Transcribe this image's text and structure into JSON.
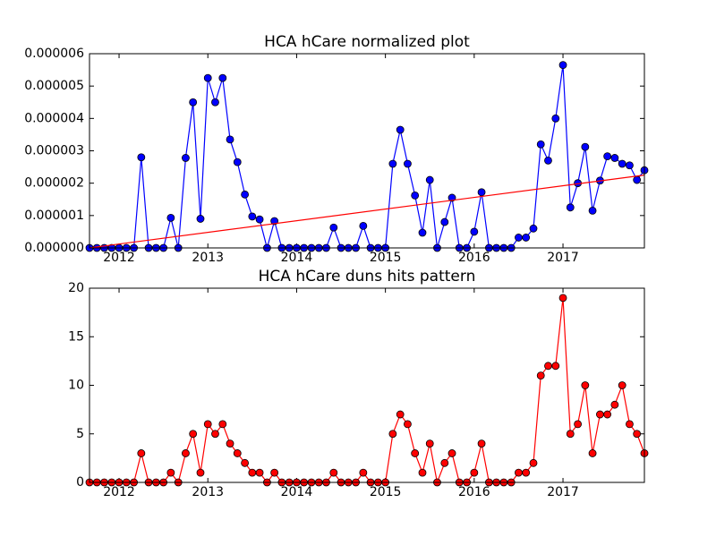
{
  "chart_data": [
    {
      "type": "line",
      "title": "HCA hCare normalized plot",
      "x": [
        2011.667,
        2011.75,
        2011.833,
        2011.917,
        2012,
        2012.083,
        2012.167,
        2012.25,
        2012.333,
        2012.417,
        2012.5,
        2012.583,
        2012.667,
        2012.75,
        2012.833,
        2012.917,
        2013,
        2013.083,
        2013.167,
        2013.25,
        2013.333,
        2013.417,
        2013.5,
        2013.583,
        2013.667,
        2013.75,
        2013.833,
        2013.917,
        2014,
        2014.083,
        2014.167,
        2014.25,
        2014.333,
        2014.417,
        2014.5,
        2014.583,
        2014.667,
        2014.75,
        2014.833,
        2014.917,
        2015,
        2015.083,
        2015.167,
        2015.25,
        2015.333,
        2015.417,
        2015.5,
        2015.583,
        2015.667,
        2015.75,
        2015.833,
        2015.917,
        2016,
        2016.083,
        2016.167,
        2016.25,
        2016.333,
        2016.417,
        2016.5,
        2016.583,
        2016.667,
        2016.75,
        2016.833,
        2016.917,
        2017,
        2017.083,
        2017.167,
        2017.25,
        2017.333,
        2017.417,
        2017.5,
        2017.583,
        2017.667,
        2017.75,
        2017.833,
        2017.917
      ],
      "series": [
        {
          "color": "#0000ff",
          "values": [
            0,
            0,
            0,
            0,
            0,
            0,
            0,
            2.8e-06,
            0,
            0,
            0,
            9.3e-07,
            0,
            2.78e-06,
            4.5e-06,
            9e-07,
            5.25e-06,
            4.5e-06,
            5.25e-06,
            3.35e-06,
            2.65e-06,
            1.65e-06,
            9.7e-07,
            8.8e-07,
            0,
            8.3e-07,
            0,
            0,
            0,
            0,
            0,
            0,
            0,
            6.3e-07,
            0,
            0,
            0,
            6.8e-07,
            0,
            0,
            0,
            2.6e-06,
            3.65e-06,
            2.6e-06,
            1.62e-06,
            4.7e-07,
            2.1e-06,
            0,
            8e-07,
            1.55e-06,
            0,
            0,
            5e-07,
            1.72e-06,
            0,
            0,
            0,
            0,
            3.2e-07,
            3.2e-07,
            6e-07,
            3.2e-06,
            2.7e-06,
            4e-06,
            5.65e-06,
            1.25e-06,
            2e-06,
            3.12e-06,
            1.15e-06,
            2.08e-06,
            2.83e-06,
            2.78e-06,
            2.6e-06,
            2.55e-06,
            2.1e-06,
            2.4e-06
          ]
        }
      ],
      "trend_line": {
        "color": "#ff0000",
        "x": [
          2011.667,
          2017.917
        ],
        "values": [
          0,
          2.25e-06
        ]
      },
      "xlim": [
        2011.667,
        2017.917
      ],
      "xticks": [
        2012,
        2013,
        2014,
        2015,
        2016,
        2017
      ],
      "ylim": [
        0,
        6e-06
      ],
      "yticks": [
        {
          "value": 0,
          "label": "0.000000"
        },
        {
          "value": 1e-06,
          "label": "0.000001"
        },
        {
          "value": 2e-06,
          "label": "0.000002"
        },
        {
          "value": 3e-06,
          "label": "0.000003"
        },
        {
          "value": 4e-06,
          "label": "0.000004"
        },
        {
          "value": 5e-06,
          "label": "0.000005"
        },
        {
          "value": 6e-06,
          "label": "0.000006"
        }
      ]
    },
    {
      "type": "line",
      "title": "HCA hCare duns hits pattern",
      "x": [
        2011.667,
        2011.75,
        2011.833,
        2011.917,
        2012,
        2012.083,
        2012.167,
        2012.25,
        2012.333,
        2012.417,
        2012.5,
        2012.583,
        2012.667,
        2012.75,
        2012.833,
        2012.917,
        2013,
        2013.083,
        2013.167,
        2013.25,
        2013.333,
        2013.417,
        2013.5,
        2013.583,
        2013.667,
        2013.75,
        2013.833,
        2013.917,
        2014,
        2014.083,
        2014.167,
        2014.25,
        2014.333,
        2014.417,
        2014.5,
        2014.583,
        2014.667,
        2014.75,
        2014.833,
        2014.917,
        2015,
        2015.083,
        2015.167,
        2015.25,
        2015.333,
        2015.417,
        2015.5,
        2015.583,
        2015.667,
        2015.75,
        2015.833,
        2015.917,
        2016,
        2016.083,
        2016.167,
        2016.25,
        2016.333,
        2016.417,
        2016.5,
        2016.583,
        2016.667,
        2016.75,
        2016.833,
        2016.917,
        2017,
        2017.083,
        2017.167,
        2017.25,
        2017.333,
        2017.417,
        2017.5,
        2017.583,
        2017.667,
        2017.75,
        2017.833,
        2017.917
      ],
      "series": [
        {
          "color": "#ff0000",
          "values": [
            0,
            0,
            0,
            0,
            0,
            0,
            0,
            3,
            0,
            0,
            0,
            1,
            0,
            3,
            5,
            1,
            6,
            5,
            6,
            4,
            3,
            2,
            1,
            1,
            0,
            1,
            0,
            0,
            0,
            0,
            0,
            0,
            0,
            1,
            0,
            0,
            0,
            1,
            0,
            0,
            0,
            5,
            7,
            6,
            3,
            1,
            4,
            0,
            2,
            3,
            0,
            0,
            1,
            4,
            0,
            0,
            0,
            0,
            1,
            1,
            2,
            11,
            12,
            12,
            19,
            5,
            6,
            10,
            3,
            7,
            7,
            8,
            10,
            6,
            5,
            3
          ]
        }
      ],
      "xlim": [
        2011.667,
        2017.917
      ],
      "xticks": [
        2012,
        2013,
        2014,
        2015,
        2016,
        2017
      ],
      "ylim": [
        0,
        20
      ],
      "yticks": [
        0,
        5,
        10,
        15,
        20
      ]
    }
  ]
}
